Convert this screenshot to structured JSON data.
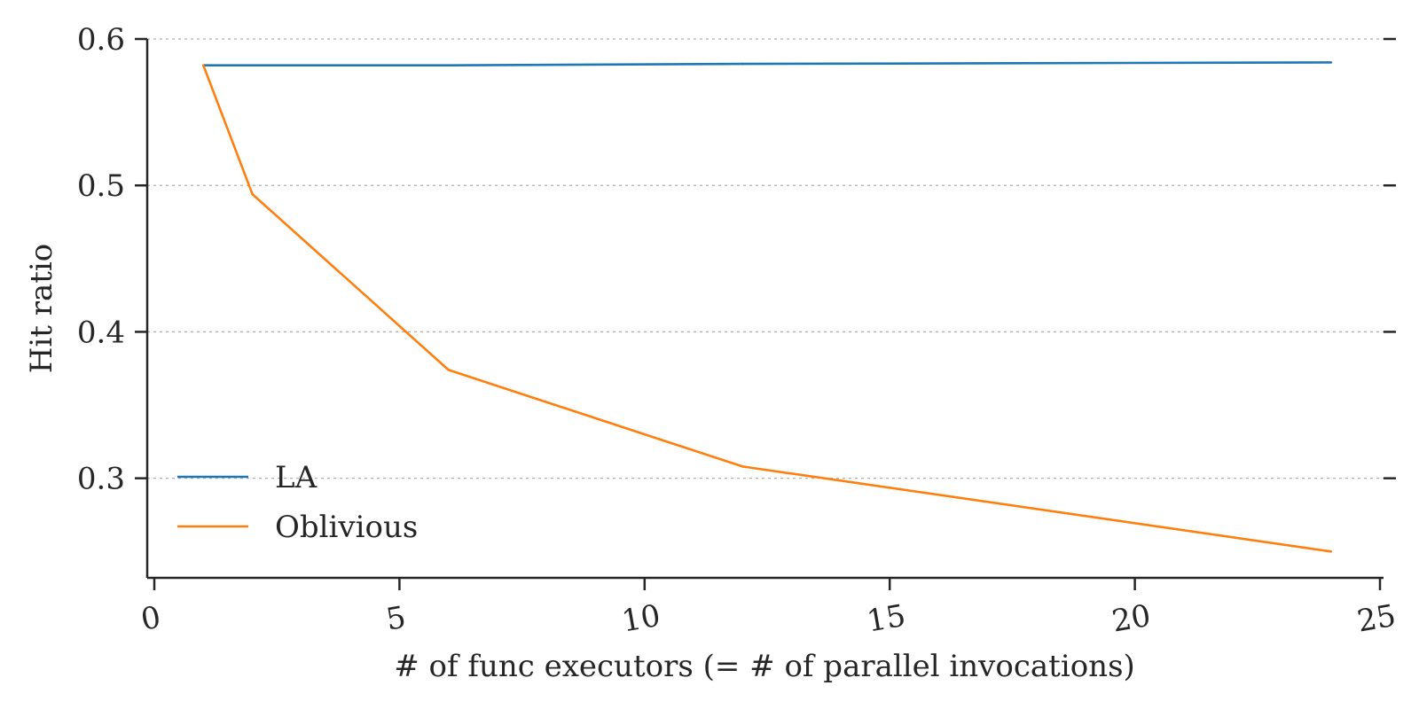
{
  "chart_data": {
    "type": "line",
    "title": "",
    "xlabel": "# of func executors (= # of parallel invocations)",
    "ylabel": "Hit ratio",
    "xlim": [
      0,
      25
    ],
    "ylim": [
      0.232,
      0.6
    ],
    "xticks": [
      0,
      5,
      10,
      15,
      20,
      25
    ],
    "xtick_labels": [
      "0",
      "5",
      "10",
      "15",
      "20",
      "25"
    ],
    "yticks": [
      0.3,
      0.4,
      0.5,
      0.6
    ],
    "ytick_labels": [
      "0.3",
      "0.4",
      "0.5",
      "0.6"
    ],
    "grid": "y-dotted",
    "legend_position": "lower-left",
    "series": [
      {
        "name": "LA",
        "color": "#1f77b4",
        "x": [
          1,
          2,
          6,
          12,
          24
        ],
        "y": [
          0.582,
          0.582,
          0.582,
          0.583,
          0.584
        ]
      },
      {
        "name": "Oblivious",
        "color": "#ff7f0e",
        "x": [
          1,
          2,
          6,
          12,
          24
        ],
        "y": [
          0.582,
          0.494,
          0.374,
          0.308,
          0.25
        ]
      }
    ]
  }
}
